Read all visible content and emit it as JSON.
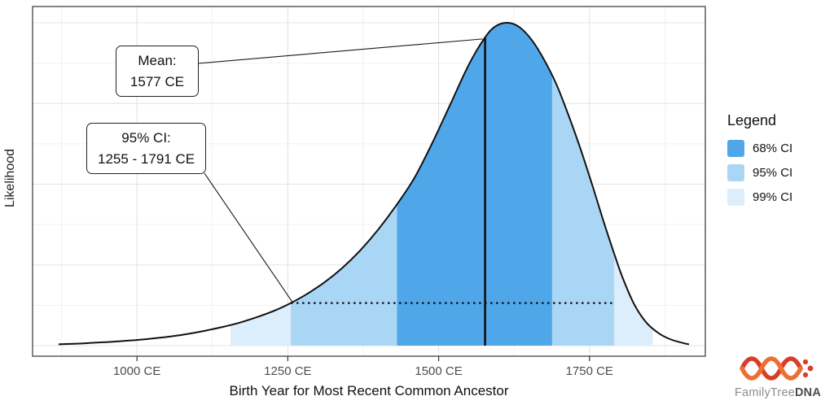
{
  "chart_data": {
    "type": "area",
    "title": "",
    "xlabel": "Birth Year for Most Recent Common Ancestor",
    "ylabel": "Likelihood",
    "xlim": [
      827,
      1942
    ],
    "ylim": [
      0,
      1.05
    ],
    "x_ticks": [
      {
        "value": 1000,
        "label": "1000 CE"
      },
      {
        "value": 1250,
        "label": "1250 CE"
      },
      {
        "value": 1500,
        "label": "1500 CE"
      },
      {
        "value": 1750,
        "label": "1750 CE"
      }
    ],
    "curve": {
      "years": [
        870,
        900,
        930,
        960,
        990,
        1020,
        1050,
        1080,
        1110,
        1140,
        1170,
        1200,
        1230,
        1255,
        1280,
        1310,
        1340,
        1370,
        1400,
        1430,
        1460,
        1490,
        1520,
        1550,
        1577,
        1595,
        1615,
        1635,
        1655,
        1675,
        1695,
        1715,
        1735,
        1755,
        1775,
        1791,
        1805,
        1825,
        1845,
        1865,
        1885,
        1905,
        1915
      ],
      "likelihood": [
        0.004,
        0.006,
        0.009,
        0.012,
        0.016,
        0.021,
        0.027,
        0.035,
        0.045,
        0.057,
        0.071,
        0.089,
        0.11,
        0.132,
        0.158,
        0.195,
        0.24,
        0.295,
        0.36,
        0.435,
        0.52,
        0.63,
        0.75,
        0.87,
        0.955,
        0.99,
        1.0,
        0.985,
        0.945,
        0.885,
        0.81,
        0.715,
        0.61,
        0.495,
        0.375,
        0.285,
        0.21,
        0.125,
        0.07,
        0.038,
        0.019,
        0.008,
        0.004
      ]
    },
    "mean_year": 1577,
    "ci": {
      "ci68": {
        "label": "68% CI",
        "range": [
          1431,
          1688
        ]
      },
      "ci95": {
        "label": "95% CI",
        "range": [
          1255,
          1791
        ]
      },
      "ci99": {
        "label": "99% CI",
        "range": [
          1155,
          1855
        ]
      }
    },
    "dotted_line": {
      "from": 1255,
      "to": 1791
    },
    "grid": {
      "x_major": [
        1000,
        1250,
        1500,
        1750
      ],
      "x_minor": [
        875,
        1125,
        1375,
        1625,
        1875
      ],
      "y_major": [
        0,
        0.25,
        0.5,
        0.75,
        1
      ],
      "y_minor": [
        0.125,
        0.375,
        0.625,
        0.875
      ]
    },
    "legend_position": "right"
  },
  "axes": {
    "x_title": "Birth Year for Most Recent Common Ancestor",
    "y_title": "Likelihood"
  },
  "annotations": {
    "mean": {
      "line1": "Mean:",
      "line2": "1577 CE"
    },
    "ci": {
      "line1": "95% CI:",
      "line2": "1255 - 1791 CE"
    }
  },
  "legend": {
    "title": "Legend",
    "items": [
      {
        "label": "68% CI",
        "color": "#4fa7e9"
      },
      {
        "label": "95% CI",
        "color": "#aad6f6"
      },
      {
        "label": "99% CI",
        "color": "#dcedfb"
      }
    ]
  },
  "brand": {
    "part1": "FamilyTree",
    "part2": "DNA"
  },
  "colors": {
    "ci68": "#4fa7e9",
    "ci95": "#aad6f6",
    "ci99": "#dcedfb",
    "curve": "#111111",
    "grid_major": "#e4e4e4",
    "grid_minor": "#f1f1f1",
    "panel_border": "#333333",
    "tick_label": "#4d4d4d",
    "leader_line": "#1a1a1a",
    "logo_primary": "#d93d27",
    "logo_secondary": "#ee6f34",
    "brand_gray": "#8d8d8f",
    "brand_dark": "#4c4c4e"
  }
}
